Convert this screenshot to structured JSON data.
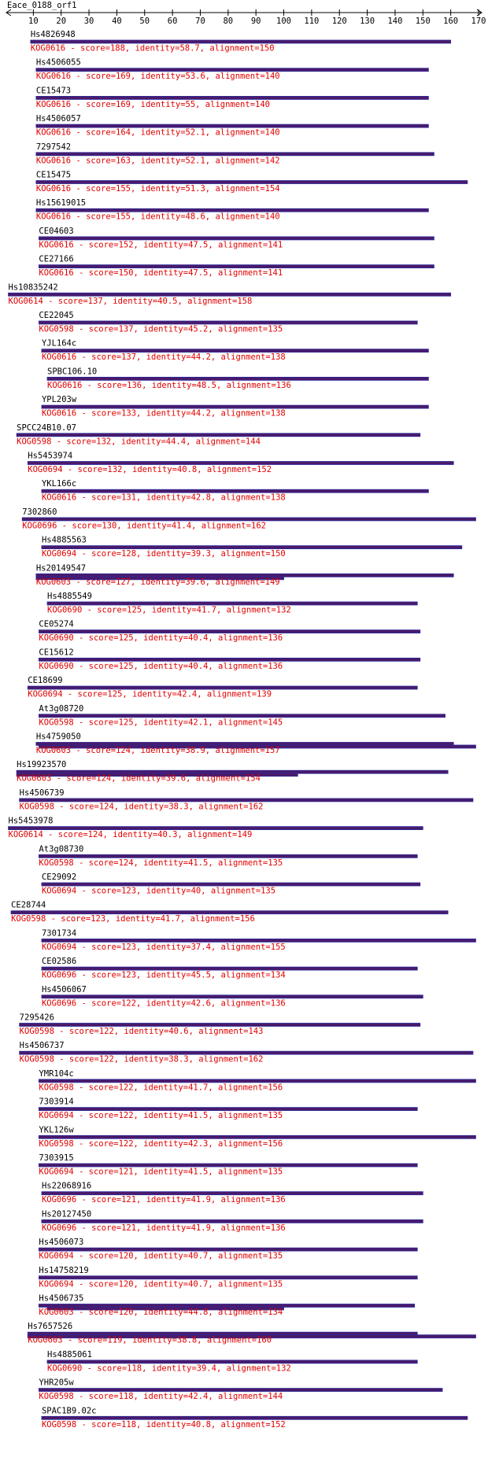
{
  "query": "Eace_0188_orf1",
  "ruler": {
    "xlim": [
      0,
      170
    ],
    "xticks": [
      10,
      20,
      30,
      40,
      50,
      60,
      70,
      80,
      90,
      100,
      110,
      120,
      130,
      140,
      150,
      160,
      170
    ]
  },
  "hits": [
    {
      "name": "Hs4826948",
      "bars": [
        [
          9,
          160
        ]
      ],
      "summary": "KOG0616 - score=188, identity=58.7, alignment=150"
    },
    {
      "name": "Hs4506055",
      "bars": [
        [
          11,
          152
        ]
      ],
      "summary": "KOG0616 - score=169, identity=53.6, alignment=140"
    },
    {
      "name": "CE15473",
      "bars": [
        [
          11,
          152
        ]
      ],
      "summary": "KOG0616 - score=169, identity=55, alignment=140"
    },
    {
      "name": "Hs4506057",
      "bars": [
        [
          11,
          152
        ]
      ],
      "summary": "KOG0616 - score=164, identity=52.1, alignment=140"
    },
    {
      "name": "7297542",
      "bars": [
        [
          11,
          154
        ]
      ],
      "summary": "KOG0616 - score=163, identity=52.1, alignment=142"
    },
    {
      "name": "CE15475",
      "bars": [
        [
          11,
          166
        ]
      ],
      "summary": "KOG0616 - score=155, identity=51.3, alignment=154"
    },
    {
      "name": "Hs15619015",
      "bars": [
        [
          11,
          152
        ]
      ],
      "summary": "KOG0616 - score=155, identity=48.6, alignment=140"
    },
    {
      "name": "CE04603",
      "bars": [
        [
          12,
          154
        ]
      ],
      "summary": "KOG0616 - score=152, identity=47.5, alignment=141"
    },
    {
      "name": "CE27166",
      "bars": [
        [
          12,
          154
        ]
      ],
      "summary": "KOG0616 - score=150, identity=47.5, alignment=141"
    },
    {
      "name": "Hs10835242",
      "bars": [
        [
          1,
          160
        ]
      ],
      "summary": "KOG0614 - score=137, identity=40.5, alignment=158"
    },
    {
      "name": "CE22045",
      "bars": [
        [
          12,
          148
        ]
      ],
      "summary": "KOG0598 - score=137, identity=45.2, alignment=135"
    },
    {
      "name": "YJL164c",
      "bars": [
        [
          13,
          152
        ]
      ],
      "summary": "KOG0616 - score=137, identity=44.2, alignment=138"
    },
    {
      "name": "SPBC106.10",
      "bars": [
        [
          15,
          152
        ]
      ],
      "summary": "KOG0616 - score=136, identity=48.5, alignment=136"
    },
    {
      "name": "YPL203w",
      "bars": [
        [
          13,
          152
        ]
      ],
      "summary": "KOG0616 - score=133, identity=44.2, alignment=138"
    },
    {
      "name": "SPCC24B10.07",
      "bars": [
        [
          4,
          149
        ]
      ],
      "summary": "KOG0598 - score=132, identity=44.4, alignment=144"
    },
    {
      "name": "Hs5453974",
      "bars": [
        [
          8,
          161
        ]
      ],
      "summary": "KOG0694 - score=132, identity=40.8, alignment=152"
    },
    {
      "name": "YKL166c",
      "bars": [
        [
          13,
          152
        ]
      ],
      "summary": "KOG0616 - score=131, identity=42.8, alignment=138"
    },
    {
      "name": "7302860",
      "bars": [
        [
          6,
          169
        ]
      ],
      "summary": "KOG0696 - score=130, identity=41.4, alignment=162"
    },
    {
      "name": "Hs4885563",
      "bars": [
        [
          13,
          164
        ]
      ],
      "summary": "KOG0694 - score=128, identity=39.3, alignment=150"
    },
    {
      "name": "Hs20149547",
      "bars": [
        [
          11,
          161
        ],
        [
          11,
          100
        ]
      ],
      "summary": "KOG0603 - score=127, identity=39.6, alignment=149"
    },
    {
      "name": "Hs4885549",
      "bars": [
        [
          15,
          148
        ]
      ],
      "summary": "KOG0690 - score=125, identity=41.7, alignment=132"
    },
    {
      "name": "CE05274",
      "bars": [
        [
          12,
          149
        ]
      ],
      "summary": "KOG0690 - score=125, identity=40.4, alignment=136"
    },
    {
      "name": "CE15612",
      "bars": [
        [
          12,
          149
        ]
      ],
      "summary": "KOG0690 - score=125, identity=40.4, alignment=136"
    },
    {
      "name": "CE18699",
      "bars": [
        [
          8,
          148
        ]
      ],
      "summary": "KOG0694 - score=125, identity=42.4, alignment=139"
    },
    {
      "name": "At3g08720",
      "bars": [
        [
          12,
          158
        ]
      ],
      "summary": "KOG0598 - score=125, identity=42.1, alignment=145"
    },
    {
      "name": "Hs4759050",
      "bars": [
        [
          11,
          161
        ],
        [
          12,
          169
        ]
      ],
      "summary": "KOG0603 - score=124, identity=38.9, alignment=157"
    },
    {
      "name": "Hs19923570",
      "bars": [
        [
          4,
          159
        ],
        [
          4,
          105
        ]
      ],
      "summary": "KOG0603 - score=124, identity=39.6, alignment=154"
    },
    {
      "name": "Hs4506739",
      "bars": [
        [
          5,
          168
        ]
      ],
      "summary": "KOG0598 - score=124, identity=38.3, alignment=162"
    },
    {
      "name": "Hs5453978",
      "bars": [
        [
          1,
          150
        ]
      ],
      "summary": "KOG0614 - score=124, identity=40.3, alignment=149"
    },
    {
      "name": "At3g08730",
      "bars": [
        [
          12,
          148
        ]
      ],
      "summary": "KOG0598 - score=124, identity=41.5, alignment=135"
    },
    {
      "name": "CE29092",
      "bars": [
        [
          13,
          149
        ]
      ],
      "summary": "KOG0694 - score=123, identity=40, alignment=135"
    },
    {
      "name": "CE28744",
      "bars": [
        [
          2,
          159
        ]
      ],
      "summary": "KOG0598 - score=123, identity=41.7, alignment=156"
    },
    {
      "name": "7301734",
      "bars": [
        [
          13,
          169
        ]
      ],
      "summary": "KOG0694 - score=123, identity=37.4, alignment=155"
    },
    {
      "name": "CE02586",
      "bars": [
        [
          13,
          148
        ]
      ],
      "summary": "KOG0696 - score=123, identity=45.5, alignment=134"
    },
    {
      "name": "Hs4506067",
      "bars": [
        [
          13,
          150
        ]
      ],
      "summary": "KOG0696 - score=122, identity=42.6, alignment=136"
    },
    {
      "name": "7295426",
      "bars": [
        [
          5,
          149
        ]
      ],
      "summary": "KOG0598 - score=122, identity=40.6, alignment=143"
    },
    {
      "name": "Hs4506737",
      "bars": [
        [
          5,
          168
        ]
      ],
      "summary": "KOG0598 - score=122, identity=38.3, alignment=162"
    },
    {
      "name": "YMR104c",
      "bars": [
        [
          12,
          169
        ]
      ],
      "summary": "KOG0598 - score=122, identity=41.7, alignment=156"
    },
    {
      "name": "7303914",
      "bars": [
        [
          12,
          148
        ]
      ],
      "summary": "KOG0694 - score=122, identity=41.5, alignment=135"
    },
    {
      "name": "YKL126w",
      "bars": [
        [
          12,
          169
        ]
      ],
      "summary": "KOG0598 - score=122, identity=42.3, alignment=156"
    },
    {
      "name": "7303915",
      "bars": [
        [
          12,
          148
        ]
      ],
      "summary": "KOG0694 - score=121, identity=41.5, alignment=135"
    },
    {
      "name": "Hs22068916",
      "bars": [
        [
          13,
          150
        ]
      ],
      "summary": "KOG0696 - score=121, identity=41.9, alignment=136"
    },
    {
      "name": "Hs20127450",
      "bars": [
        [
          13,
          150
        ]
      ],
      "summary": "KOG0696 - score=121, identity=41.9, alignment=136"
    },
    {
      "name": "Hs4506073",
      "bars": [
        [
          12,
          148
        ]
      ],
      "summary": "KOG0694 - score=120, identity=40.7, alignment=135"
    },
    {
      "name": "Hs14758219",
      "bars": [
        [
          12,
          148
        ]
      ],
      "summary": "KOG0694 - score=120, identity=40.7, alignment=135"
    },
    {
      "name": "Hs4506735",
      "bars": [
        [
          12,
          147
        ],
        [
          15,
          100
        ]
      ],
      "summary": "KOG0603 - score=120, identity=44.8, alignment=134"
    },
    {
      "name": "Hs7657526",
      "bars": [
        [
          8,
          148
        ],
        [
          8,
          169
        ]
      ],
      "summary": "KOG0603 - score=119, identity=38.8, alignment=160"
    },
    {
      "name": "Hs4885061",
      "bars": [
        [
          15,
          148
        ]
      ],
      "summary": "KOG0690 - score=118, identity=39.4, alignment=132"
    },
    {
      "name": "YHR205w",
      "bars": [
        [
          12,
          157
        ]
      ],
      "summary": "KOG0598 - score=118, identity=42.4, alignment=144"
    },
    {
      "name": "SPAC1B9.02c",
      "bars": [
        [
          13,
          166
        ]
      ],
      "summary": "KOG0598 - score=118, identity=40.8, alignment=152"
    }
  ]
}
